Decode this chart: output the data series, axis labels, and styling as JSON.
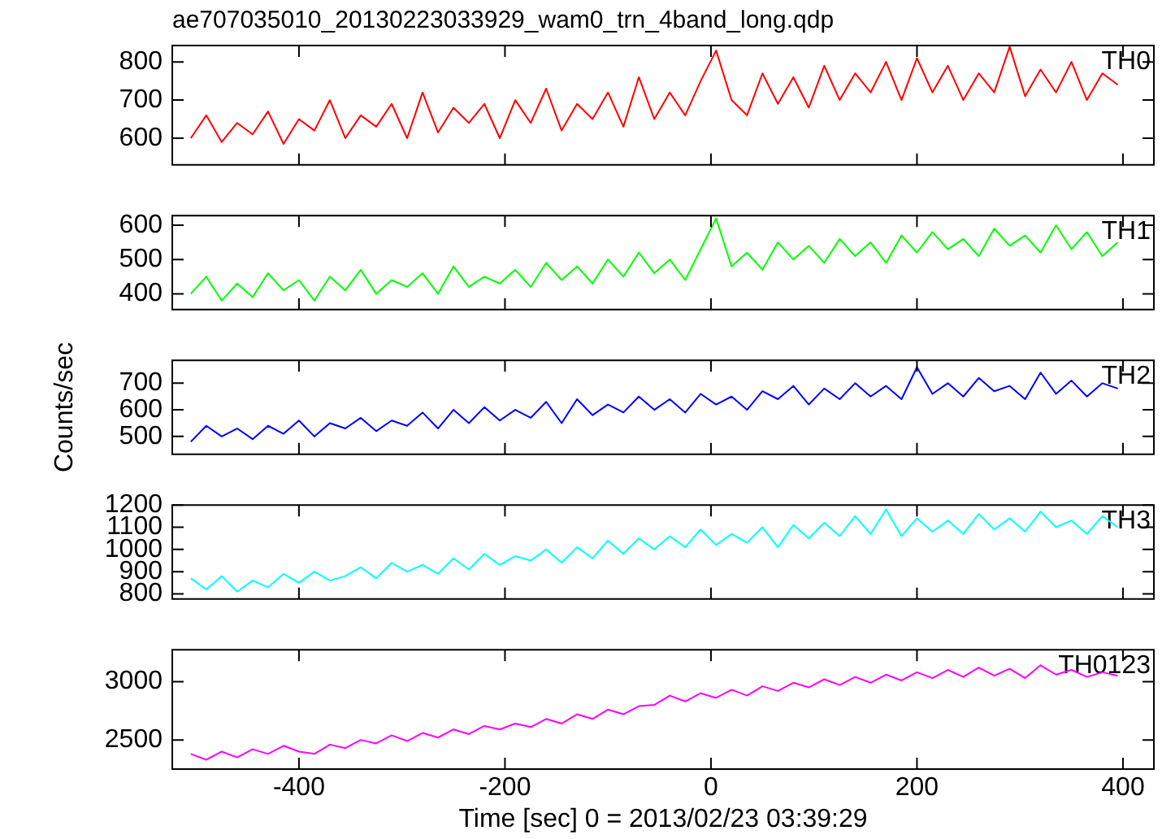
{
  "chart_data": [
    {
      "type": "line",
      "title": "ae707035010_20130223033929_wam0_trn_4band_long.qdp",
      "x": [
        -505,
        -490,
        -475,
        -460,
        -445,
        -430,
        -415,
        -400,
        -385,
        -370,
        -355,
        -340,
        -325,
        -310,
        -295,
        -280,
        -265,
        -250,
        -235,
        -220,
        -205,
        -190,
        -175,
        -160,
        -145,
        -130,
        -115,
        -100,
        -85,
        -70,
        -55,
        -40,
        -25,
        -10,
        5,
        20,
        35,
        50,
        65,
        80,
        95,
        110,
        125,
        140,
        155,
        170,
        185,
        200,
        215,
        230,
        245,
        260,
        275,
        290,
        305,
        320,
        335,
        350,
        365,
        380,
        395
      ],
      "xlim": [
        -523,
        430
      ],
      "xticks": [
        -400,
        -200,
        0,
        200,
        400
      ],
      "ylim": [
        530,
        843
      ],
      "yticks": [
        600,
        700,
        800
      ],
      "tick_labels": "y",
      "series": [
        {
          "name": "TH0",
          "color": "#ff0000",
          "values": [
            600,
            660,
            590,
            640,
            610,
            670,
            585,
            650,
            620,
            700,
            600,
            660,
            630,
            690,
            600,
            720,
            615,
            680,
            640,
            690,
            600,
            700,
            640,
            730,
            620,
            690,
            650,
            720,
            630,
            760,
            650,
            720,
            660,
            750,
            830,
            700,
            660,
            770,
            690,
            760,
            680,
            790,
            700,
            770,
            720,
            800,
            700,
            810,
            720,
            790,
            700,
            770,
            720,
            840,
            710,
            780,
            720,
            800,
            700,
            770,
            740
          ]
        }
      ]
    },
    {
      "type": "line",
      "x": [
        -505,
        -490,
        -475,
        -460,
        -445,
        -430,
        -415,
        -400,
        -385,
        -370,
        -355,
        -340,
        -325,
        -310,
        -295,
        -280,
        -265,
        -250,
        -235,
        -220,
        -205,
        -190,
        -175,
        -160,
        -145,
        -130,
        -115,
        -100,
        -85,
        -70,
        -55,
        -40,
        -25,
        -10,
        5,
        20,
        35,
        50,
        65,
        80,
        95,
        110,
        125,
        140,
        155,
        170,
        185,
        200,
        215,
        230,
        245,
        260,
        275,
        290,
        305,
        320,
        335,
        350,
        365,
        380,
        395
      ],
      "xlim": [
        -523,
        430
      ],
      "xticks": [
        -400,
        -200,
        0,
        200,
        400
      ],
      "ylim": [
        354,
        628
      ],
      "yticks": [
        400,
        500,
        600
      ],
      "tick_labels": "y",
      "series": [
        {
          "name": "TH1",
          "color": "#00ff00",
          "values": [
            400,
            450,
            380,
            430,
            390,
            460,
            410,
            440,
            380,
            450,
            410,
            470,
            400,
            440,
            420,
            460,
            400,
            480,
            420,
            450,
            430,
            470,
            420,
            490,
            440,
            480,
            430,
            500,
            450,
            520,
            460,
            500,
            440,
            530,
            620,
            480,
            520,
            470,
            550,
            500,
            540,
            490,
            560,
            510,
            550,
            490,
            570,
            520,
            580,
            530,
            560,
            510,
            590,
            540,
            570,
            520,
            600,
            530,
            580,
            510,
            550
          ]
        }
      ]
    },
    {
      "type": "line",
      "ylabel": "Counts/sec",
      "x": [
        -505,
        -490,
        -475,
        -460,
        -445,
        -430,
        -415,
        -400,
        -385,
        -370,
        -355,
        -340,
        -325,
        -310,
        -295,
        -280,
        -265,
        -250,
        -235,
        -220,
        -205,
        -190,
        -175,
        -160,
        -145,
        -130,
        -115,
        -100,
        -85,
        -70,
        -55,
        -40,
        -25,
        -10,
        5,
        20,
        35,
        50,
        65,
        80,
        95,
        110,
        125,
        140,
        155,
        170,
        185,
        200,
        215,
        230,
        245,
        260,
        275,
        290,
        305,
        320,
        335,
        350,
        365,
        380,
        395
      ],
      "xlim": [
        -523,
        430
      ],
      "xticks": [
        -400,
        -200,
        0,
        200,
        400
      ],
      "ylim": [
        433,
        786
      ],
      "yticks": [
        500,
        600,
        700
      ],
      "tick_labels": "y",
      "series": [
        {
          "name": "TH2",
          "color": "#0000ff",
          "values": [
            480,
            540,
            500,
            530,
            490,
            540,
            510,
            560,
            500,
            550,
            530,
            570,
            520,
            560,
            540,
            590,
            530,
            600,
            550,
            610,
            560,
            600,
            570,
            630,
            550,
            640,
            580,
            620,
            590,
            650,
            600,
            640,
            590,
            660,
            620,
            650,
            600,
            670,
            640,
            690,
            620,
            680,
            640,
            700,
            650,
            690,
            640,
            760,
            660,
            700,
            650,
            720,
            670,
            690,
            640,
            740,
            660,
            710,
            650,
            700,
            680
          ]
        }
      ]
    },
    {
      "type": "line",
      "x": [
        -505,
        -490,
        -475,
        -460,
        -445,
        -430,
        -415,
        -400,
        -385,
        -370,
        -355,
        -340,
        -325,
        -310,
        -295,
        -280,
        -265,
        -250,
        -235,
        -220,
        -205,
        -190,
        -175,
        -160,
        -145,
        -130,
        -115,
        -100,
        -85,
        -70,
        -55,
        -40,
        -25,
        -10,
        5,
        20,
        35,
        50,
        65,
        80,
        95,
        110,
        125,
        140,
        155,
        170,
        185,
        200,
        215,
        230,
        245,
        260,
        275,
        290,
        305,
        320,
        335,
        350,
        365,
        380,
        395
      ],
      "xlim": [
        -523,
        430
      ],
      "xticks": [
        -400,
        -200,
        0,
        200,
        400
      ],
      "ylim": [
        777,
        1200
      ],
      "yticks": [
        800,
        900,
        1000,
        1100,
        1200
      ],
      "tick_labels": "y",
      "series": [
        {
          "name": "TH3",
          "color": "#00ffff",
          "values": [
            870,
            820,
            880,
            810,
            860,
            830,
            890,
            850,
            900,
            860,
            880,
            920,
            870,
            940,
            900,
            930,
            890,
            960,
            910,
            980,
            930,
            970,
            950,
            1000,
            940,
            1010,
            960,
            1040,
            980,
            1050,
            1000,
            1060,
            1010,
            1090,
            1020,
            1070,
            1030,
            1100,
            1010,
            1110,
            1050,
            1120,
            1060,
            1150,
            1070,
            1180,
            1060,
            1140,
            1080,
            1130,
            1070,
            1160,
            1090,
            1140,
            1080,
            1170,
            1100,
            1130,
            1070,
            1150,
            1100
          ]
        }
      ]
    },
    {
      "type": "line",
      "xlabel": "Time [sec] 0 = 2013/02/23 03:39:29",
      "x": [
        -505,
        -490,
        -475,
        -460,
        -445,
        -430,
        -415,
        -400,
        -385,
        -370,
        -355,
        -340,
        -325,
        -310,
        -295,
        -280,
        -265,
        -250,
        -235,
        -220,
        -205,
        -190,
        -175,
        -160,
        -145,
        -130,
        -115,
        -100,
        -85,
        -70,
        -55,
        -40,
        -25,
        -10,
        5,
        20,
        35,
        50,
        65,
        80,
        95,
        110,
        125,
        140,
        155,
        170,
        185,
        200,
        215,
        230,
        245,
        260,
        275,
        290,
        305,
        320,
        335,
        350,
        365,
        380,
        395
      ],
      "xlim": [
        -523,
        430
      ],
      "xticks": [
        -400,
        -200,
        0,
        200,
        400
      ],
      "ylim": [
        2250,
        3273
      ],
      "yticks": [
        2500,
        3000
      ],
      "series": [
        {
          "name": "TH0123",
          "color": "#ff00ff",
          "values": [
            2380,
            2330,
            2400,
            2350,
            2420,
            2380,
            2450,
            2400,
            2380,
            2460,
            2430,
            2500,
            2470,
            2540,
            2490,
            2560,
            2520,
            2590,
            2550,
            2620,
            2590,
            2640,
            2610,
            2680,
            2640,
            2720,
            2680,
            2760,
            2720,
            2790,
            2800,
            2880,
            2830,
            2900,
            2860,
            2930,
            2880,
            2960,
            2920,
            2990,
            2950,
            3020,
            2970,
            3040,
            2990,
            3060,
            3010,
            3080,
            3030,
            3100,
            3040,
            3120,
            3050,
            3110,
            3030,
            3140,
            3060,
            3100,
            3040,
            3080,
            3050
          ]
        }
      ]
    }
  ]
}
